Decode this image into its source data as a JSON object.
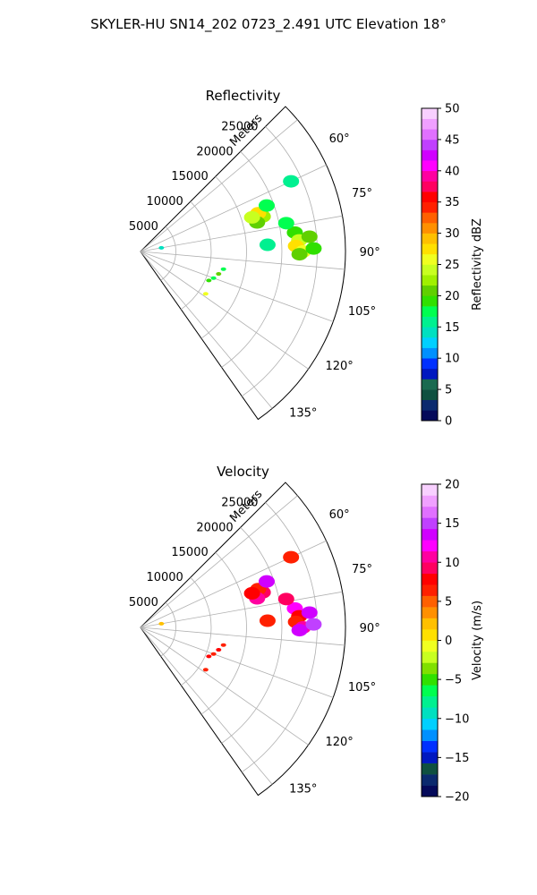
{
  "figure": {
    "suptitle": "SKYLER-HU  SN14_202  0723_2.491 UTC Elevation 18°"
  },
  "chart_data": [
    {
      "type": "polar-sector",
      "title": "Reflectivity",
      "radial_axis_label": "Meters",
      "radial_ticks": [
        5000,
        10000,
        15000,
        20000,
        25000
      ],
      "radial_tick_labels": [
        "5000",
        "10000",
        "15000",
        "20000",
        "25000"
      ],
      "rlim": [
        0,
        29000
      ],
      "azimuth_range_deg": [
        45,
        145
      ],
      "azimuth_ticks": [
        60,
        75,
        90,
        105,
        120,
        135
      ],
      "azimuth_tick_labels": [
        "60°",
        "75°",
        "90°",
        "105°",
        "120°",
        "135°"
      ],
      "grid": true,
      "colorbar": {
        "label": "Reflectivity dBZ",
        "vmin": 0,
        "vmax": 50,
        "ticks": [
          0,
          5,
          10,
          15,
          20,
          25,
          30,
          35,
          40,
          45,
          50
        ],
        "tick_labels": [
          "0",
          "5",
          "10",
          "15",
          "20",
          "25",
          "30",
          "35",
          "40",
          "45",
          "50"
        ]
      },
      "echoes": [
        {
          "az": 74,
          "r": 18000,
          "value": 22
        },
        {
          "az": 72,
          "r": 17500,
          "value": 27
        },
        {
          "az": 76,
          "r": 17000,
          "value": 20
        },
        {
          "az": 70,
          "r": 19000,
          "value": 18
        },
        {
          "az": 73,
          "r": 16500,
          "value": 24
        },
        {
          "az": 83,
          "r": 22000,
          "value": 19
        },
        {
          "az": 86,
          "r": 22500,
          "value": 24
        },
        {
          "az": 88,
          "r": 22000,
          "value": 28
        },
        {
          "az": 90,
          "r": 23000,
          "value": 26
        },
        {
          "az": 91,
          "r": 22500,
          "value": 21
        },
        {
          "az": 85,
          "r": 24000,
          "value": 20
        },
        {
          "az": 89,
          "r": 24500,
          "value": 19
        },
        {
          "az": 79,
          "r": 21000,
          "value": 17
        },
        {
          "az": 87,
          "r": 18000,
          "value": 16
        },
        {
          "az": 65,
          "r": 23500,
          "value": 16
        },
        {
          "az": 102,
          "r": 12000,
          "value": 18
        },
        {
          "az": 106,
          "r": 11500,
          "value": 20
        },
        {
          "az": 110,
          "r": 11000,
          "value": 17
        },
        {
          "az": 113,
          "r": 10500,
          "value": 19
        },
        {
          "az": 123,
          "r": 11000,
          "value": 25
        },
        {
          "az": 80,
          "r": 3000,
          "value": 14
        }
      ]
    },
    {
      "type": "polar-sector",
      "title": "Velocity",
      "radial_axis_label": "Meters",
      "radial_ticks": [
        5000,
        10000,
        15000,
        20000,
        25000
      ],
      "radial_tick_labels": [
        "5000",
        "10000",
        "15000",
        "20000",
        "25000"
      ],
      "rlim": [
        0,
        29000
      ],
      "azimuth_range_deg": [
        45,
        145
      ],
      "azimuth_ticks": [
        60,
        75,
        90,
        105,
        120,
        135
      ],
      "azimuth_tick_labels": [
        "60°",
        "75°",
        "90°",
        "105°",
        "120°",
        "135°"
      ],
      "grid": true,
      "colorbar": {
        "label": "Velocity (m/s)",
        "vmin": -20,
        "vmax": 20,
        "ticks": [
          -20,
          -15,
          -10,
          -5,
          0,
          5,
          10,
          15,
          20
        ],
        "tick_labels": [
          "−20",
          "−15",
          "−10",
          "−5",
          "0",
          "5",
          "10",
          "15",
          "20"
        ]
      },
      "echoes": [
        {
          "az": 74,
          "r": 18000,
          "value": 9
        },
        {
          "az": 72,
          "r": 17500,
          "value": 7
        },
        {
          "az": 76,
          "r": 17000,
          "value": 11
        },
        {
          "az": 70,
          "r": 19000,
          "value": 13
        },
        {
          "az": 73,
          "r": 16500,
          "value": 8
        },
        {
          "az": 83,
          "r": 22000,
          "value": 12
        },
        {
          "az": 86,
          "r": 22500,
          "value": 8
        },
        {
          "az": 88,
          "r": 22000,
          "value": 7
        },
        {
          "az": 90,
          "r": 23000,
          "value": 10
        },
        {
          "az": 91,
          "r": 22500,
          "value": 13
        },
        {
          "az": 85,
          "r": 24000,
          "value": 14
        },
        {
          "az": 89,
          "r": 24500,
          "value": 15
        },
        {
          "az": 79,
          "r": 21000,
          "value": 9
        },
        {
          "az": 87,
          "r": 18000,
          "value": 7
        },
        {
          "az": 65,
          "r": 23500,
          "value": 6
        },
        {
          "az": 102,
          "r": 12000,
          "value": 7
        },
        {
          "az": 106,
          "r": 11500,
          "value": 8
        },
        {
          "az": 110,
          "r": 11000,
          "value": 7
        },
        {
          "az": 113,
          "r": 10500,
          "value": 8
        },
        {
          "az": 123,
          "r": 11000,
          "value": 7
        },
        {
          "az": 80,
          "r": 3000,
          "value": 2
        }
      ]
    }
  ]
}
